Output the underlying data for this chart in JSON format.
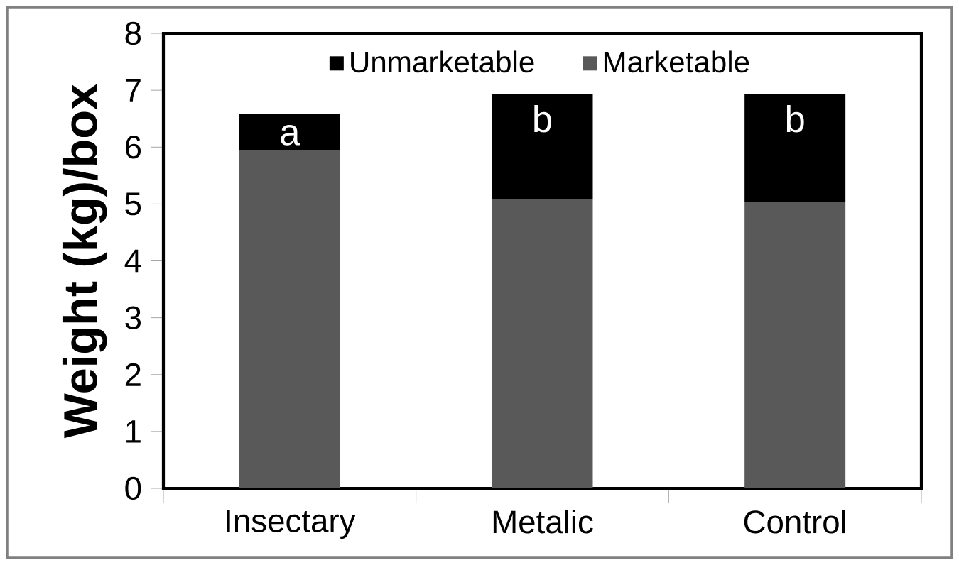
{
  "chart_data": {
    "type": "bar",
    "stacked": true,
    "ylabel": "Weight (kg)/box",
    "categories": [
      "Insectary",
      "Metalic",
      "Control"
    ],
    "series": [
      {
        "name": "Marketable",
        "color": "#595959",
        "values": [
          5.95,
          5.08,
          5.03
        ]
      },
      {
        "name": "Unmarketable",
        "color": "#000000",
        "values": [
          0.64,
          1.86,
          1.91
        ]
      }
    ],
    "ylim": [
      0,
      8
    ],
    "yticks": [
      0,
      1,
      2,
      3,
      4,
      5,
      6,
      7,
      8
    ],
    "grid": false,
    "legend": "top",
    "annotations": [
      "a",
      "b",
      "b"
    ]
  }
}
